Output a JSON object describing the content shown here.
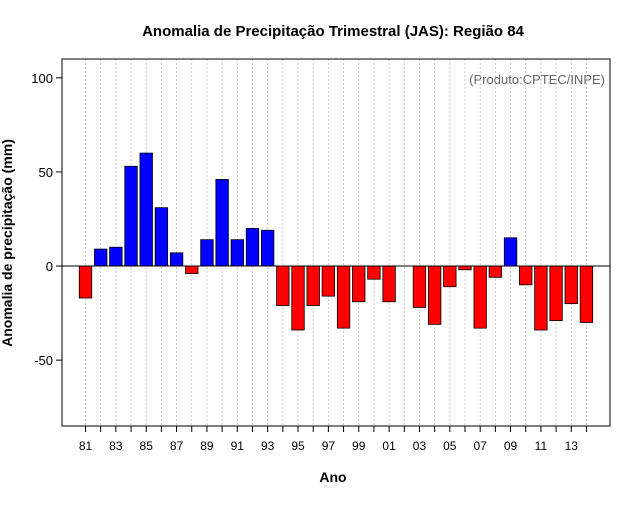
{
  "chart_data": {
    "type": "bar",
    "title": "Anomalia de Precipitação Trimestral (JAS): Região 84",
    "xlabel": "Ano",
    "ylabel": "Anomalia de precipitação (mm)",
    "annotation": "(Produto:CPTEC/INPE)",
    "ylim": [
      -85,
      110
    ],
    "yticks": [
      -50,
      0,
      50,
      100
    ],
    "tick_labels": [
      "81",
      "83",
      "85",
      "87",
      "89",
      "91",
      "93",
      "95",
      "97",
      "99",
      "01",
      "03",
      "05",
      "07",
      "09",
      "11",
      "13"
    ],
    "categories": [
      "1981",
      "1982",
      "1983",
      "1984",
      "1985",
      "1986",
      "1987",
      "1988",
      "1989",
      "1990",
      "1991",
      "1992",
      "1993",
      "1994",
      "1995",
      "1996",
      "1997",
      "1998",
      "1999",
      "2000",
      "2001",
      "2002",
      "2003",
      "2004",
      "2005",
      "2006",
      "2007",
      "2008",
      "2009",
      "2010",
      "2011",
      "2012",
      "2013",
      "2014"
    ],
    "values": [
      -17,
      9,
      10,
      53,
      60,
      31,
      7,
      -4,
      14,
      46,
      14,
      20,
      19,
      -21,
      -34,
      -21,
      -16,
      -33,
      -19,
      -7,
      -19,
      0,
      -22,
      -31,
      -11,
      -2,
      -33,
      -6,
      15,
      -10,
      -34,
      -29,
      -20,
      -30
    ],
    "positive_color": "#0000ff",
    "negative_color": "#ff0000",
    "grid": true,
    "legend": "none"
  }
}
